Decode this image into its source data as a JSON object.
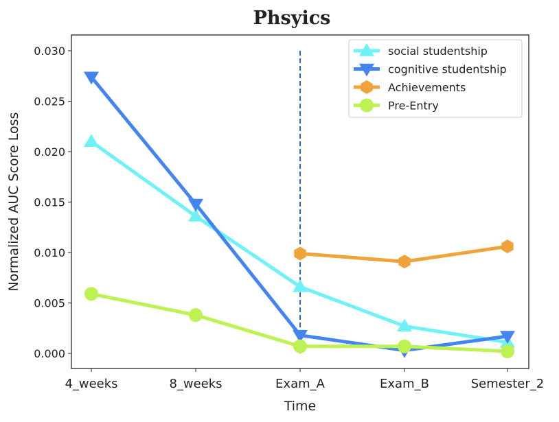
{
  "chart_data": {
    "type": "line",
    "title": "Phsyics",
    "xlabel": "Time",
    "ylabel": "Normalized AUC Score Loss",
    "categories": [
      "4_weeks",
      "8_weeks",
      "Exam_A",
      "Exam_B",
      "Semester_2"
    ],
    "ylim": [
      -0.0015,
      0.0315
    ],
    "yticks": [
      "0.000",
      "0.005",
      "0.010",
      "0.015",
      "0.020",
      "0.025",
      "0.030"
    ],
    "grid": false,
    "legend_position": "top-right",
    "vertical_marker": {
      "category": "Exam_A",
      "style": "dashed",
      "color": "#2d6bbf",
      "range": [
        0,
        0.03
      ]
    },
    "series": [
      {
        "name": "social studentship",
        "color": "#6ef2f8",
        "marker": "triangle-up",
        "values": [
          0.021,
          0.0136,
          0.0066,
          0.0027,
          0.0011
        ]
      },
      {
        "name": "cognitive studentship",
        "color": "#4285f0",
        "marker": "triangle-down",
        "values": [
          0.0274,
          0.0148,
          0.0018,
          0.0003,
          0.0017
        ]
      },
      {
        "name": "Achievements",
        "color": "#f0a33a",
        "marker": "hexagon",
        "values": [
          null,
          null,
          0.0099,
          0.0091,
          0.0106
        ]
      },
      {
        "name": "Pre-Entry",
        "color": "#bdf252",
        "marker": "circle",
        "values": [
          0.0059,
          0.0038,
          0.0007,
          0.0007,
          0.0002
        ]
      }
    ]
  }
}
